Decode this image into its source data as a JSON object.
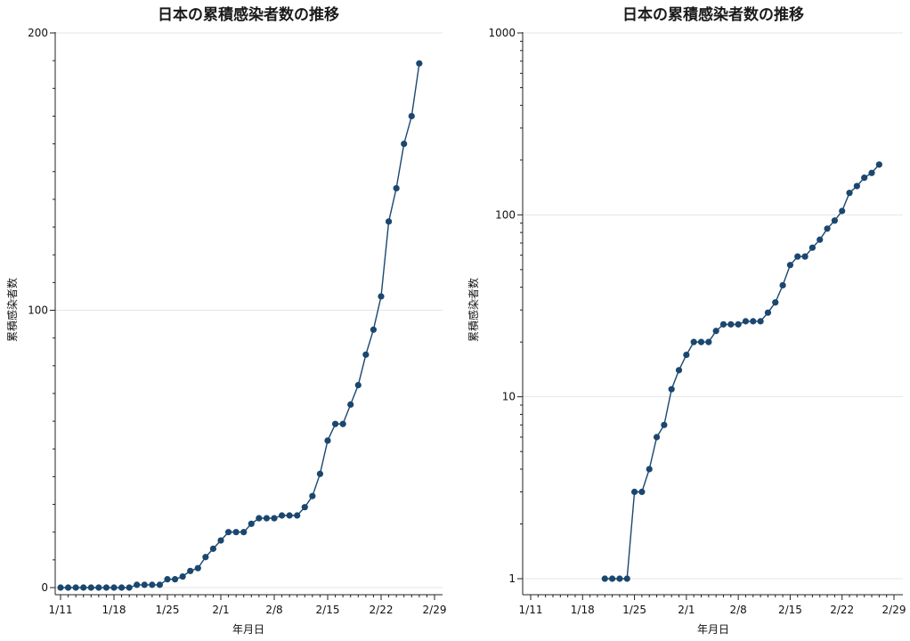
{
  "colors": {
    "series": "#1a476f",
    "grid": "#e6e6e6",
    "axis": "#222222"
  },
  "chart_data": [
    {
      "type": "line",
      "title": "日本の累積感染者数の推移",
      "xlabel": "年月日",
      "ylabel": "累積感染者数",
      "ylim": [
        0,
        200
      ],
      "yscale": "linear",
      "yticks": [
        0,
        100,
        200
      ],
      "ytick_labels": [
        "0",
        "100",
        "200"
      ],
      "xtick_labels": [
        "1/11",
        "1/18",
        "1/25",
        "2/1",
        "2/8",
        "2/15",
        "2/22",
        "2/29"
      ],
      "grid": true,
      "x": [
        "1/11",
        "1/12",
        "1/13",
        "1/14",
        "1/15",
        "1/16",
        "1/17",
        "1/18",
        "1/19",
        "1/20",
        "1/21",
        "1/22",
        "1/23",
        "1/24",
        "1/25",
        "1/26",
        "1/27",
        "1/28",
        "1/29",
        "1/30",
        "1/31",
        "2/1",
        "2/2",
        "2/3",
        "2/4",
        "2/5",
        "2/6",
        "2/7",
        "2/8",
        "2/9",
        "2/10",
        "2/11",
        "2/12",
        "2/13",
        "2/14",
        "2/15",
        "2/16",
        "2/17",
        "2/18",
        "2/19",
        "2/20",
        "2/21",
        "2/22",
        "2/23",
        "2/24",
        "2/25",
        "2/26",
        "2/27"
      ],
      "values": [
        0,
        0,
        0,
        0,
        0,
        0,
        0,
        0,
        0,
        0,
        1,
        1,
        1,
        1,
        3,
        3,
        4,
        6,
        7,
        11,
        14,
        17,
        20,
        20,
        20,
        23,
        25,
        25,
        25,
        26,
        26,
        26,
        29,
        33,
        41,
        53,
        59,
        59,
        66,
        73,
        84,
        93,
        105,
        132,
        144,
        160,
        170,
        189
      ]
    },
    {
      "type": "line",
      "title": "日本の累積感染者数の推移",
      "xlabel": "年月日",
      "ylabel": "累積感染者数",
      "ylim": [
        1,
        1000
      ],
      "yscale": "log",
      "yticks": [
        1,
        10,
        100,
        1000
      ],
      "ytick_labels": [
        "1",
        "10",
        "100",
        "1000"
      ],
      "xtick_labels": [
        "1/11",
        "1/18",
        "1/25",
        "2/1",
        "2/8",
        "2/15",
        "2/22",
        "2/29"
      ],
      "grid": true,
      "x": [
        "1/21",
        "1/22",
        "1/23",
        "1/24",
        "1/25",
        "1/26",
        "1/27",
        "1/28",
        "1/29",
        "1/30",
        "1/31",
        "2/1",
        "2/2",
        "2/3",
        "2/4",
        "2/5",
        "2/6",
        "2/7",
        "2/8",
        "2/9",
        "2/10",
        "2/11",
        "2/12",
        "2/13",
        "2/14",
        "2/15",
        "2/16",
        "2/17",
        "2/18",
        "2/19",
        "2/20",
        "2/21",
        "2/22",
        "2/23",
        "2/24",
        "2/25",
        "2/26",
        "2/27"
      ],
      "values": [
        1,
        1,
        1,
        1,
        3,
        3,
        4,
        6,
        7,
        11,
        14,
        17,
        20,
        20,
        20,
        23,
        25,
        25,
        25,
        26,
        26,
        26,
        29,
        33,
        41,
        53,
        59,
        59,
        66,
        73,
        84,
        93,
        105,
        132,
        144,
        160,
        170,
        189
      ]
    }
  ]
}
